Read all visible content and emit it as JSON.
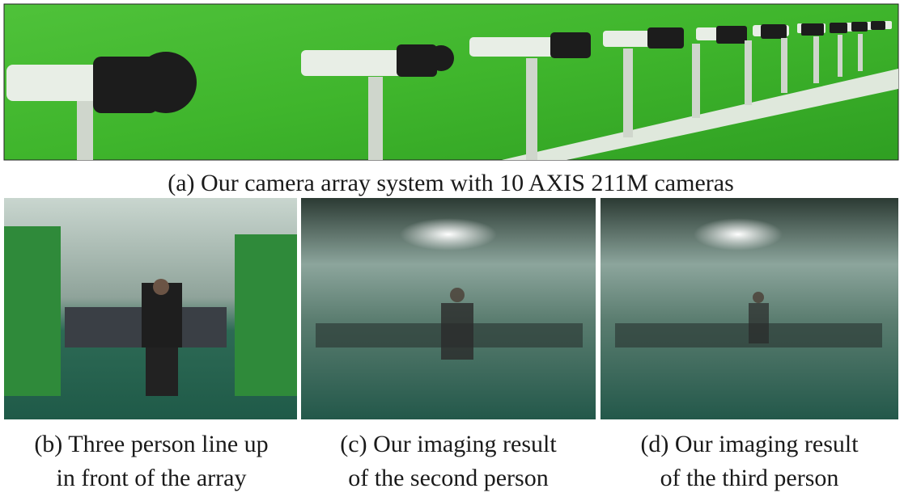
{
  "figure": {
    "panels": [
      {
        "caption": [
          "(a) Our camera array system with 10 AXIS 211M cameras"
        ]
      },
      {
        "caption": [
          "(b) Three person line up",
          "in front of the array"
        ]
      },
      {
        "caption": [
          "(c) Our imaging result",
          "of the second person"
        ]
      },
      {
        "caption": [
          "(d) Our imaging result",
          "of the third person"
        ]
      }
    ]
  }
}
